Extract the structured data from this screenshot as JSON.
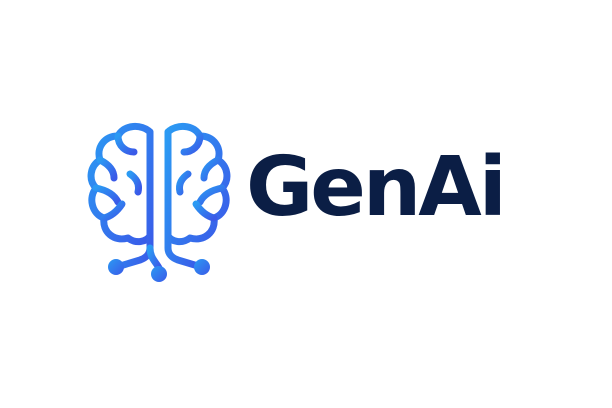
{
  "logo": {
    "name": "GenAi",
    "text_color": "#0b1e45",
    "icon": "brain-circuit-icon",
    "gradient_start": "#2b9af3",
    "gradient_end": "#3a5ae8"
  }
}
